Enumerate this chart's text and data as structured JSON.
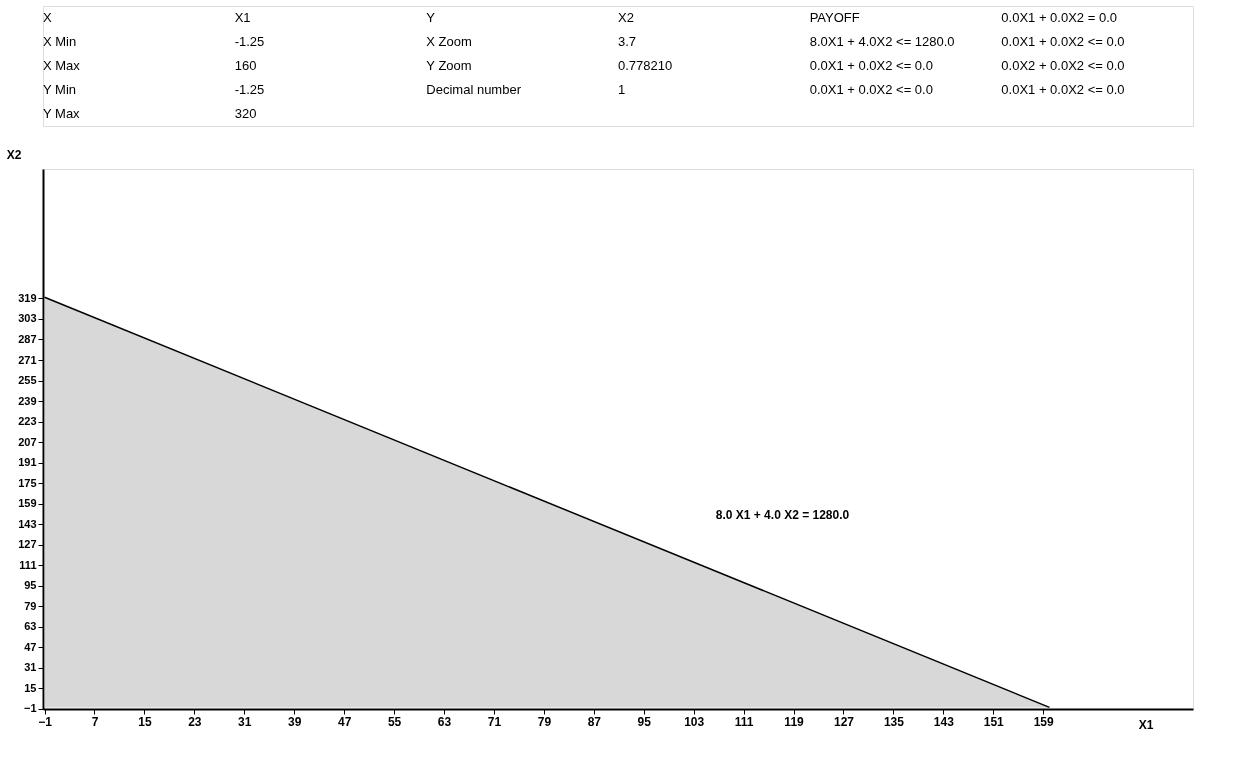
{
  "chart_data": {
    "type": "area",
    "xlabel": "X1",
    "ylabel": "X2",
    "x": [
      -1,
      160
    ],
    "series": [
      {
        "color": "#c8c8c8",
        "values": [
          320,
          0
        ]
      }
    ],
    "xlim": [
      -1.25,
      183
    ],
    "ylim": [
      -1.25,
      420
    ],
    "xticks": [
      -1,
      7,
      15,
      23,
      31,
      39,
      47,
      55,
      63,
      71,
      79,
      87,
      95,
      103,
      111,
      119,
      127,
      135,
      143,
      151,
      159
    ],
    "yticks": [
      -1,
      15,
      31,
      47,
      63,
      79,
      95,
      111,
      127,
      143,
      159,
      175,
      191,
      207,
      223,
      239,
      255,
      271,
      287,
      303,
      319
    ],
    "grid": false,
    "annotations": [
      "8.0 X1 +   4.0 X2 = 1280.0",
      "X",
      "X1",
      "Y",
      "X2",
      "PAYOFF",
      "0.0X1 +  0.0X2 =  0.0",
      "X Min",
      "-1.25",
      "X Zoom",
      "3.7",
      "8.0X1 +  4.0X2 <= 1280.0",
      "0.0X1 +  0.0X2 <=  0.0",
      "X Max",
      "160",
      "Y Zoom",
      "0.778210",
      "0.0X1 +  0.0X2 <=  0.0",
      "0.0X2 +  0.0X2 <=  0.0",
      "Y Min",
      "-1.25",
      "Decimal number",
      "1",
      "0.0X1 +  0.0X2 <=  0.0",
      "0.0X1 +  0.0X2 <=  0.0",
      "Y Max",
      "320"
    ]
  }
}
